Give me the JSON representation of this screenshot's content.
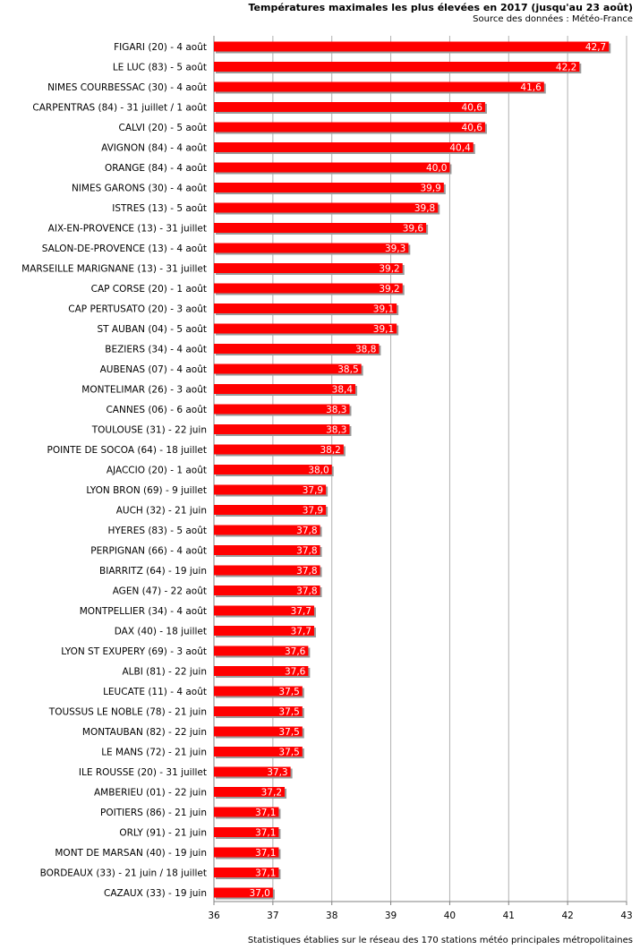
{
  "chart_data": {
    "type": "bar",
    "orientation": "horizontal",
    "title": "Températures maximales les plus élevées en 2017 (jusqu'au 23 août)",
    "subtitle": "Source des données : Météo-France",
    "footnote": "Statistiques établies sur le réseau des 170 stations météo principales métropolitaines",
    "xlim": [
      36,
      43
    ],
    "xticks": [
      "36",
      "37",
      "38",
      "39",
      "40",
      "41",
      "42",
      "43"
    ],
    "grid": true,
    "bar_color": "#ff0000",
    "shadow_color": "#9a9a9a",
    "categories": [
      "FIGARI (20) - 4 août",
      "LE LUC (83) - 5 août",
      "NIMES COURBESSAC (30) - 4 août",
      "CARPENTRAS (84) - 31 juillet / 1 août",
      "CALVI (20) - 5 août",
      "AVIGNON (84) - 4 août",
      "ORANGE (84) - 4 août",
      "NIMES GARONS (30) - 4 août",
      "ISTRES (13) - 5 août",
      "AIX-EN-PROVENCE (13) - 31 juillet",
      "SALON-DE-PROVENCE (13) - 4 août",
      "MARSEILLE MARIGNANE (13) - 31 juillet",
      "CAP CORSE (20) - 1 août",
      "CAP PERTUSATO (20) - 3 août",
      "ST AUBAN (04) - 5 août",
      "BEZIERS (34) - 4 août",
      "AUBENAS (07) - 4 août",
      "MONTELIMAR (26) - 3 août",
      "CANNES (06) - 6 août",
      "TOULOUSE (31) - 22 juin",
      "POINTE DE SOCOA (64) - 18 juillet",
      "AJACCIO (20) - 1 août",
      "LYON BRON (69) - 9 juillet",
      "AUCH (32) - 21 juin",
      "HYERES (83) - 5 août",
      "PERPIGNAN (66) - 4 août",
      "BIARRITZ (64) - 19 juin",
      "AGEN (47) - 22 août",
      "MONTPELLIER (34) - 4 août",
      "DAX (40) - 18 juillet",
      "LYON ST EXUPERY (69) - 3 août",
      "ALBI (81) - 22 juin",
      "LEUCATE (11) - 4 août",
      "TOUSSUS LE NOBLE (78) - 21 juin",
      "MONTAUBAN (82) - 22 juin",
      "LE MANS (72) - 21 juin",
      "ILE ROUSSE (20) - 31 juillet",
      "AMBERIEU (01) - 22 juin",
      "POITIERS (86) - 21 juin",
      "ORLY (91) - 21 juin",
      "MONT DE MARSAN (40) - 19 juin",
      "BORDEAUX (33) - 21 juin / 18 juillet",
      "CAZAUX (33) - 19 juin"
    ],
    "values": [
      42.7,
      42.2,
      41.6,
      40.6,
      40.6,
      40.4,
      40.0,
      39.9,
      39.8,
      39.6,
      39.3,
      39.2,
      39.2,
      39.1,
      39.1,
      38.8,
      38.5,
      38.4,
      38.3,
      38.3,
      38.2,
      38.0,
      37.9,
      37.9,
      37.8,
      37.8,
      37.8,
      37.8,
      37.7,
      37.7,
      37.6,
      37.6,
      37.5,
      37.5,
      37.5,
      37.5,
      37.3,
      37.2,
      37.1,
      37.1,
      37.1,
      37.1,
      37.0
    ],
    "value_labels": [
      "42,7",
      "42,2",
      "41,6",
      "40,6",
      "40,6",
      "40,4",
      "40,0",
      "39,9",
      "39,8",
      "39,6",
      "39,3",
      "39,2",
      "39,2",
      "39,1",
      "39,1",
      "38,8",
      "38,5",
      "38,4",
      "38,3",
      "38,3",
      "38,2",
      "38,0",
      "37,9",
      "37,9",
      "37,8",
      "37,8",
      "37,8",
      "37,8",
      "37,7",
      "37,7",
      "37,6",
      "37,6",
      "37,5",
      "37,5",
      "37,5",
      "37,5",
      "37,3",
      "37,2",
      "37,1",
      "37,1",
      "37,1",
      "37,1",
      "37,0"
    ]
  }
}
